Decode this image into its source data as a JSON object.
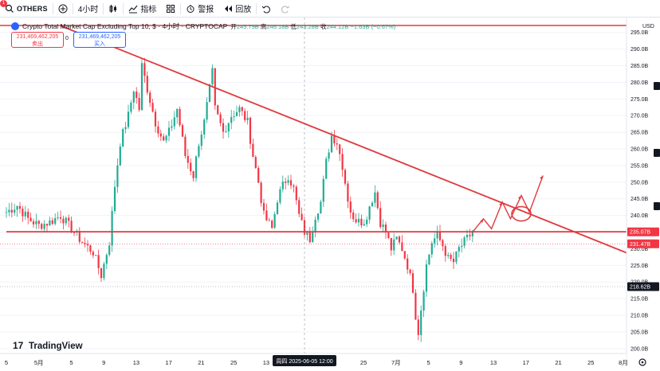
{
  "toolbar": {
    "symbol": "OTHERS",
    "interval": "4小时",
    "indicators_label": "指标",
    "alert_label": "警报",
    "replay_label": "回放",
    "notification_count": "1"
  },
  "legend": {
    "title": "Crypto Total Market Cap Excluding Top 10, $ · 4小时 · CRYPTOCAP",
    "open_label": "开",
    "open": "245.79B",
    "high_label": "高",
    "high": "246.18B",
    "low_label": "低",
    "low": "243.28B",
    "close_label": "收",
    "close": "244.12B",
    "change": "−1.63B (−0.67%)"
  },
  "sell_box": {
    "value": "231,469,462,205",
    "label": "卖出"
  },
  "buy_box": {
    "value": "231,469,462,205",
    "label": "买入"
  },
  "spread": "0",
  "currency": "USD",
  "watermark": "TradingView",
  "crosshair_label": "周四  2025-06-05   12:00",
  "colors": {
    "up": "#22ab94",
    "down": "#f23645",
    "trendline": "#e03a3e",
    "price_tag_red": "#f23645",
    "price_tag_dark": "#131722"
  },
  "chart_data": {
    "type": "candlestick",
    "unit": "B USD",
    "ylim": [
      199,
      299
    ],
    "y_ticks": [
      200.0,
      205.0,
      210.0,
      215.0,
      220.0,
      225.0,
      230.0,
      235.0,
      240.0,
      245.0,
      250.0,
      255.0,
      260.0,
      265.0,
      270.0,
      275.0,
      280.0,
      285.0,
      290.0,
      295.0
    ],
    "y_tick_labels": [
      "200.0B",
      "205.0B",
      "210.0B",
      "215.0B",
      "220.0B",
      "225.0B",
      "230.0B",
      "235.0B",
      "240.0B",
      "245.0B",
      "250.0B",
      "255.0B",
      "260.0B",
      "265.0B",
      "270.0B",
      "275.0B",
      "280.0B",
      "285.0B",
      "290.0B",
      "295.0B"
    ],
    "x_axis_labels": [
      "5",
      "5月",
      "5",
      "9",
      "13",
      "17",
      "21",
      "25",
      "13",
      "17",
      "21",
      "25",
      "7月",
      "5",
      "9",
      "13",
      "17",
      "21",
      "25",
      "8月"
    ],
    "price_labels": [
      {
        "value": 235.07,
        "label": "235.07B",
        "style": "red"
      },
      {
        "value": 231.47,
        "label": "231.47B",
        "style": "red"
      },
      {
        "value": 218.62,
        "label": "218.62B",
        "style": "dark"
      }
    ],
    "anchors": [
      [
        0,
        241
      ],
      [
        4,
        243
      ],
      [
        8,
        239
      ],
      [
        12,
        237
      ],
      [
        16,
        238
      ],
      [
        20,
        240
      ],
      [
        24,
        236
      ],
      [
        28,
        232
      ],
      [
        32,
        229
      ],
      [
        35,
        222
      ],
      [
        38,
        232
      ],
      [
        40,
        249
      ],
      [
        42,
        262
      ],
      [
        45,
        270
      ],
      [
        47,
        278
      ],
      [
        49,
        272
      ],
      [
        50,
        285
      ],
      [
        52,
        278
      ],
      [
        55,
        268
      ],
      [
        58,
        262
      ],
      [
        60,
        265
      ],
      [
        63,
        272
      ],
      [
        66,
        258
      ],
      [
        69,
        252
      ],
      [
        71,
        262
      ],
      [
        73,
        268
      ],
      [
        75,
        278
      ],
      [
        76,
        283
      ],
      [
        77,
        272
      ],
      [
        80,
        265
      ],
      [
        83,
        270
      ],
      [
        86,
        272
      ],
      [
        89,
        268
      ],
      [
        91,
        258
      ],
      [
        93,
        250
      ],
      [
        95,
        240
      ],
      [
        98,
        236
      ],
      [
        100,
        245
      ],
      [
        102,
        249
      ],
      [
        104,
        252
      ],
      [
        106,
        248
      ],
      [
        108,
        240
      ],
      [
        110,
        235
      ],
      [
        112,
        233
      ],
      [
        114,
        240
      ],
      [
        116,
        244
      ],
      [
        118,
        256
      ],
      [
        120,
        264
      ],
      [
        122,
        262
      ],
      [
        124,
        255
      ],
      [
        126,
        245
      ],
      [
        128,
        238
      ],
      [
        130,
        240
      ],
      [
        132,
        237
      ],
      [
        134,
        243
      ],
      [
        136,
        247
      ],
      [
        138,
        238
      ],
      [
        140,
        235
      ],
      [
        142,
        230
      ],
      [
        144,
        233
      ],
      [
        146,
        230
      ],
      [
        148,
        225
      ],
      [
        150,
        218
      ],
      [
        151,
        210
      ],
      [
        152,
        205
      ],
      [
        153,
        212
      ],
      [
        155,
        225
      ],
      [
        157,
        232
      ],
      [
        159,
        234
      ],
      [
        161,
        231
      ],
      [
        163,
        227
      ],
      [
        165,
        226
      ],
      [
        167,
        230
      ],
      [
        170,
        233
      ],
      [
        172,
        235
      ]
    ],
    "trendlines": [
      {
        "from": [
          20,
          297
        ],
        "to": [
          260,
          218.6
        ]
      },
      {
        "from": [
          0,
          235.1
        ],
        "to": [
          260,
          235.1
        ]
      }
    ],
    "projection_path": [
      [
        172,
        235
      ],
      [
        176,
        239
      ],
      [
        179,
        236
      ],
      [
        183,
        244
      ],
      [
        186,
        239
      ],
      [
        190,
        246
      ],
      [
        193,
        241
      ],
      [
        198,
        252
      ]
    ],
    "ellipse_center": [
      190,
      240.5
    ],
    "crosshair_x": 110,
    "grid": true
  }
}
